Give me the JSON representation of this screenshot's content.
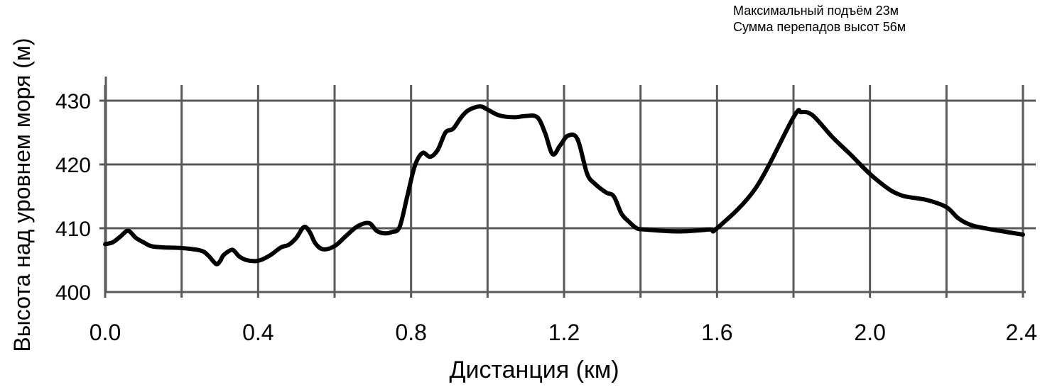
{
  "stats": {
    "max_climb": "Максимальный подъём 23м",
    "total_elevation_change": "Сумма перепадов высот 56м"
  },
  "chart_data": {
    "type": "line",
    "title": "",
    "xlabel": "Дистанция (км)",
    "ylabel": "Высота над уровнем моря (м)",
    "xlim": [
      0,
      2.4
    ],
    "ylim": [
      400,
      430
    ],
    "x_ticks": [
      "0.0",
      "0.4",
      "0.8",
      "1.2",
      "1.6",
      "2.0",
      "2.4"
    ],
    "y_ticks": [
      "400",
      "410",
      "420",
      "430"
    ],
    "grid": true,
    "legend": "none",
    "line_color": "#000000",
    "grid_color": "#595959",
    "series": [
      {
        "x": [
          0.0,
          0.02,
          0.04,
          0.06,
          0.08,
          0.1,
          0.12,
          0.15,
          0.2,
          0.25,
          0.27,
          0.29,
          0.3,
          0.31,
          0.33,
          0.34,
          0.35,
          0.37,
          0.4,
          0.43,
          0.46,
          0.48,
          0.5,
          0.52,
          0.535,
          0.55,
          0.57,
          0.6,
          0.63,
          0.66,
          0.69,
          0.71,
          0.73,
          0.75,
          0.77,
          0.79,
          0.81,
          0.83,
          0.85,
          0.87,
          0.89,
          0.91,
          0.93,
          0.95,
          0.98,
          1.0,
          1.03,
          1.07,
          1.1,
          1.13,
          1.15,
          1.17,
          1.19,
          1.21,
          1.235,
          1.26,
          1.28,
          1.31,
          1.33,
          1.35,
          1.37,
          1.39,
          1.41,
          1.5,
          1.58,
          1.6,
          1.7,
          1.8,
          1.82,
          1.85,
          1.9,
          1.95,
          2.0,
          2.05,
          2.08,
          2.1,
          2.15,
          2.2,
          2.23,
          2.26,
          2.3,
          2.4
        ],
        "y": [
          407.5,
          407.8,
          408.7,
          409.6,
          408.5,
          407.8,
          407.2,
          407.0,
          406.9,
          406.5,
          405.7,
          404.4,
          404.8,
          405.8,
          406.6,
          406.3,
          405.6,
          405.0,
          404.9,
          405.7,
          407.0,
          407.4,
          408.5,
          410.2,
          409.4,
          407.6,
          406.7,
          407.2,
          408.8,
          410.3,
          410.8,
          409.6,
          409.2,
          409.4,
          410.2,
          415.0,
          419.8,
          421.8,
          421.2,
          422.3,
          425.0,
          425.6,
          427.3,
          428.5,
          429.1,
          428.6,
          427.7,
          427.4,
          427.6,
          427.4,
          425.0,
          421.6,
          423.0,
          424.5,
          424.0,
          418.6,
          417.0,
          415.6,
          415.0,
          412.3,
          411.0,
          410.0,
          409.8,
          409.5,
          409.8,
          410.0,
          416.2,
          427.4,
          428.2,
          427.7,
          424.4,
          421.5,
          418.5,
          416.1,
          415.2,
          414.9,
          414.4,
          413.3,
          411.6,
          410.6,
          410.0,
          409.0
        ]
      }
    ]
  }
}
